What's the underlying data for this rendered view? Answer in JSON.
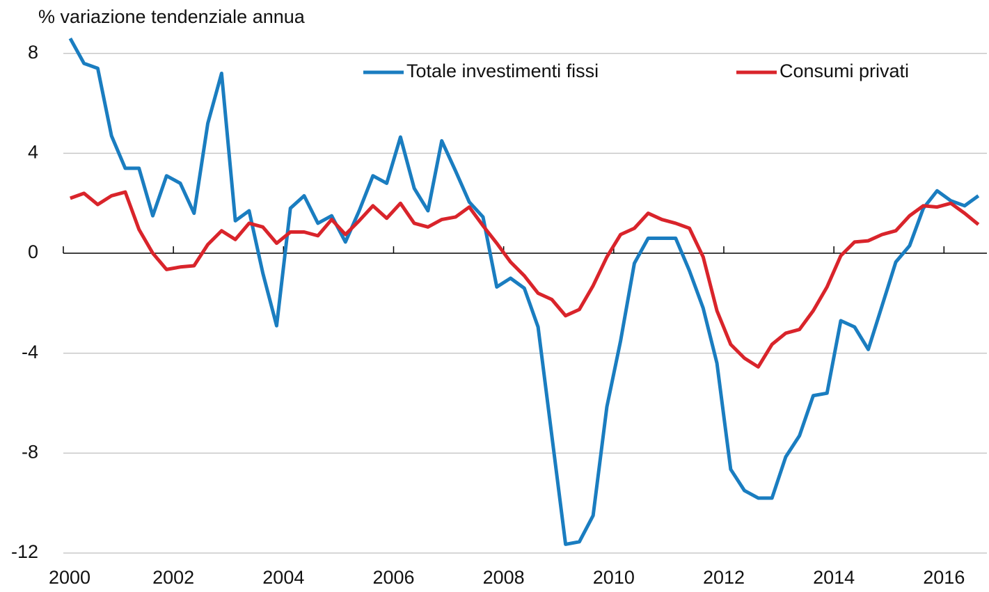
{
  "chart_data": {
    "type": "line",
    "y_label": "% variazione tendenziale annua",
    "x": [
      2000.125,
      2000.375,
      2000.625,
      2000.875,
      2001.125,
      2001.375,
      2001.625,
      2001.875,
      2002.125,
      2002.375,
      2002.625,
      2002.875,
      2003.125,
      2003.375,
      2003.625,
      2003.875,
      2004.125,
      2004.375,
      2004.625,
      2004.875,
      2005.125,
      2005.375,
      2005.625,
      2005.875,
      2006.125,
      2006.375,
      2006.625,
      2006.875,
      2007.125,
      2007.375,
      2007.625,
      2007.875,
      2008.125,
      2008.375,
      2008.625,
      2008.875,
      2009.125,
      2009.375,
      2009.625,
      2009.875,
      2010.125,
      2010.375,
      2010.625,
      2010.875,
      2011.125,
      2011.375,
      2011.625,
      2011.875,
      2012.125,
      2012.375,
      2012.625,
      2012.875,
      2013.125,
      2013.375,
      2013.625,
      2013.875,
      2014.125,
      2014.375,
      2014.625,
      2014.875,
      2015.125,
      2015.375,
      2015.625,
      2015.875,
      2016.125,
      2016.375,
      2016.625
    ],
    "series": [
      {
        "name": "Totale investimenti fissi",
        "color": "#1a7dc0",
        "values": [
          8.6,
          7.6,
          7.4,
          4.7,
          3.4,
          3.4,
          1.5,
          3.1,
          2.8,
          1.6,
          5.2,
          7.2,
          1.3,
          1.7,
          -0.8,
          -2.9,
          1.8,
          2.3,
          1.2,
          1.5,
          0.45,
          1.7,
          3.1,
          2.8,
          4.65,
          2.6,
          1.7,
          4.5,
          3.3,
          2.05,
          1.45,
          -1.35,
          -1.0,
          -1.4,
          -2.95,
          -7.3,
          -11.65,
          -11.55,
          -10.5,
          -6.15,
          -3.5,
          -0.4,
          0.6,
          0.6,
          0.6,
          -0.7,
          -2.2,
          -4.4,
          -8.65,
          -9.5,
          -9.8,
          -9.8,
          -8.15,
          -7.3,
          -5.7,
          -5.6,
          -2.7,
          -2.95,
          -3.85,
          -2.1,
          -0.35,
          0.3,
          1.8,
          2.5,
          2.1,
          1.9,
          2.3
        ]
      },
      {
        "name": "Consumi privati",
        "color": "#d9242b",
        "values": [
          2.2,
          2.4,
          1.95,
          2.3,
          2.45,
          0.95,
          0,
          -0.65,
          -0.55,
          -0.5,
          0.35,
          0.9,
          0.55,
          1.2,
          1.05,
          0.4,
          0.85,
          0.85,
          0.7,
          1.35,
          0.75,
          1.3,
          1.9,
          1.4,
          2.0,
          1.2,
          1.05,
          1.35,
          1.45,
          1.85,
          1.1,
          0.4,
          -0.35,
          -0.9,
          -1.6,
          -1.85,
          -2.5,
          -2.25,
          -1.3,
          -0.15,
          0.75,
          1.0,
          1.6,
          1.35,
          1.2,
          1.0,
          -0.15,
          -2.3,
          -3.65,
          -4.2,
          -4.55,
          -3.65,
          -3.2,
          -3.05,
          -2.3,
          -1.35,
          -0.1,
          0.45,
          0.5,
          0.75,
          0.9,
          1.5,
          1.9,
          1.85,
          2.0,
          1.6,
          1.15
        ]
      }
    ],
    "xlim": [
      2000,
      2016.78
    ],
    "xticks": [
      2000,
      2002,
      2004,
      2006,
      2008,
      2010,
      2012,
      2014,
      2016
    ],
    "ylim": [
      -12,
      8.8
    ],
    "yticks": [
      -12,
      -8,
      -4,
      0,
      4,
      8
    ],
    "grid": true,
    "legend": "top"
  }
}
